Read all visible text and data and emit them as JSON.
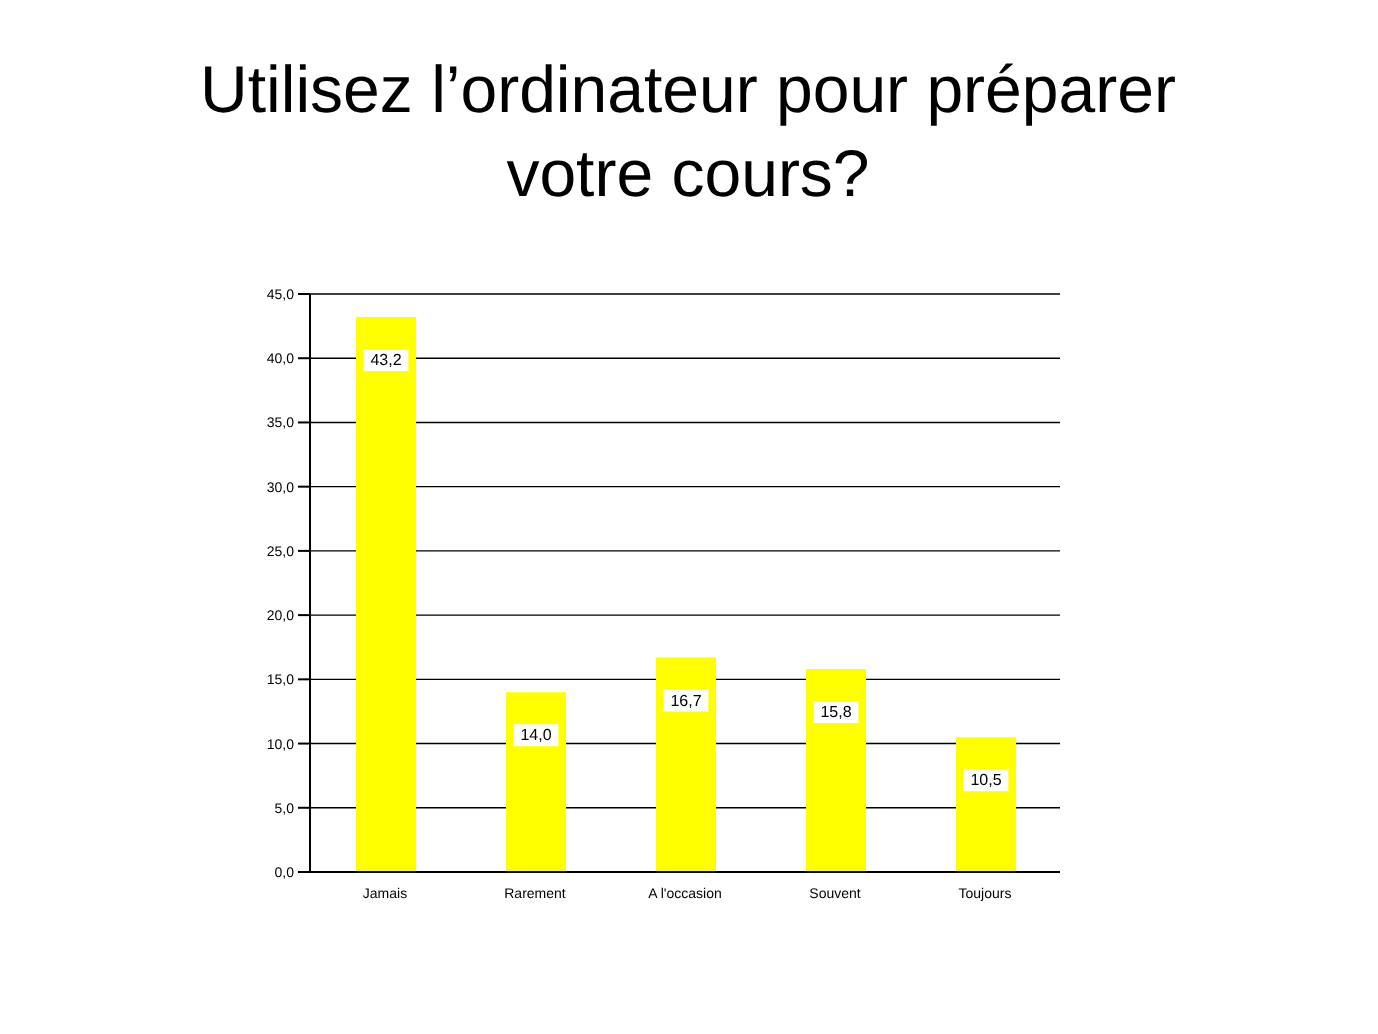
{
  "chart_data": {
    "type": "bar",
    "title": "Utilisez l’ordinateur pour préparer votre cours?",
    "categories": [
      "Jamais",
      "Rarement",
      "A l'occasion",
      "Souvent",
      "Toujours"
    ],
    "values": [
      43.2,
      14.0,
      16.7,
      15.8,
      10.5
    ],
    "value_labels": [
      "43,2",
      "14,0",
      "16,7",
      "15,8",
      "10,5"
    ],
    "color": "#ffff00",
    "ylim": [
      0,
      45
    ],
    "yticks": [
      {
        "value": 0,
        "label": "0,0"
      },
      {
        "value": 5,
        "label": "5,0"
      },
      {
        "value": 10,
        "label": "10,0"
      },
      {
        "value": 15,
        "label": "15,0"
      },
      {
        "value": 20,
        "label": "20,0"
      },
      {
        "value": 25,
        "label": "25,0"
      },
      {
        "value": 30,
        "label": "30,0"
      },
      {
        "value": 35,
        "label": "35,0"
      },
      {
        "value": 40,
        "label": "40,0"
      },
      {
        "value": 45,
        "label": "45,0"
      }
    ],
    "grid": "y"
  }
}
